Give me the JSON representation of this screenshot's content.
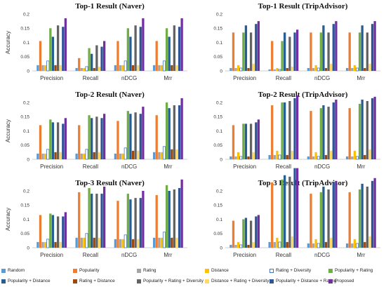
{
  "chart_data": [
    {
      "type": "bar",
      "title": "Top-1 Result (Naver)",
      "ylabel": "Accuracy",
      "ylim": [
        0,
        0.2
      ],
      "yticks": [
        "0",
        "0.05",
        "0.1",
        "0.15",
        "0.2"
      ],
      "categories": [
        "Precision",
        "Recall",
        "nDCG",
        "Mrr"
      ],
      "series_values": [
        [
          0.02,
          0.105,
          0.02,
          0.02,
          0.035,
          0.15,
          0.12,
          0.02,
          0.16,
          0.02,
          0.155,
          0.185
        ],
        [
          0.01,
          0.045,
          0.01,
          0.01,
          0.015,
          0.08,
          0.06,
          0.01,
          0.09,
          0.015,
          0.085,
          0.105
        ],
        [
          0.02,
          0.105,
          0.02,
          0.02,
          0.035,
          0.15,
          0.12,
          0.02,
          0.16,
          0.02,
          0.155,
          0.185
        ],
        [
          0.02,
          0.105,
          0.02,
          0.02,
          0.035,
          0.15,
          0.12,
          0.02,
          0.16,
          0.02,
          0.155,
          0.185
        ]
      ]
    },
    {
      "type": "bar",
      "title": "Top-1 Result (TripAdvisor)",
      "ylabel": "",
      "ylim": [
        0,
        0.2
      ],
      "yticks": [
        "0",
        "0.05",
        "0.1",
        "0.15",
        "0.2"
      ],
      "categories": [
        "Precision",
        "Recall",
        "nDCG",
        "Mrr"
      ],
      "series_values": [
        [
          0.01,
          0.135,
          0.01,
          0.02,
          0.01,
          0.135,
          0.16,
          0.01,
          0.135,
          0.025,
          0.165,
          0.175
        ],
        [
          0.005,
          0.105,
          0.005,
          0.01,
          0.005,
          0.105,
          0.135,
          0.01,
          0.12,
          0.015,
          0.135,
          0.145
        ],
        [
          0.01,
          0.135,
          0.01,
          0.02,
          0.01,
          0.135,
          0.16,
          0.01,
          0.135,
          0.025,
          0.165,
          0.175
        ],
        [
          0.01,
          0.135,
          0.01,
          0.02,
          0.01,
          0.135,
          0.16,
          0.01,
          0.135,
          0.025,
          0.165,
          0.175
        ]
      ]
    },
    {
      "type": "bar",
      "title": "Top-2 Result (Naver)",
      "ylabel": "Accuracy",
      "ylim": [
        0,
        0.2
      ],
      "yticks": [
        "0",
        "0.05",
        "0.1",
        "0.15",
        "0.2"
      ],
      "categories": [
        "Precision",
        "Recall",
        "nDCG",
        "Mrr"
      ],
      "series_values": [
        [
          0.02,
          0.12,
          0.02,
          0.02,
          0.035,
          0.14,
          0.13,
          0.025,
          0.13,
          0.025,
          0.125,
          0.145
        ],
        [
          0.02,
          0.12,
          0.02,
          0.02,
          0.035,
          0.155,
          0.145,
          0.025,
          0.15,
          0.025,
          0.145,
          0.16
        ],
        [
          0.02,
          0.135,
          0.02,
          0.02,
          0.04,
          0.17,
          0.16,
          0.03,
          0.165,
          0.03,
          0.16,
          0.185
        ],
        [
          0.025,
          0.155,
          0.025,
          0.025,
          0.045,
          0.2,
          0.18,
          0.035,
          0.19,
          0.035,
          0.19,
          0.215
        ]
      ]
    },
    {
      "type": "bar",
      "title": "Top-2 Result (TripAdvisor)",
      "ylabel": "",
      "ylim": [
        0,
        0.2
      ],
      "yticks": [
        "0",
        "0.05",
        "0.1",
        "0.15",
        "0.2"
      ],
      "categories": [
        "Precision",
        "Recall",
        "nDCG",
        "Mrr"
      ],
      "series_values": [
        [
          0.01,
          0.12,
          0.01,
          0.025,
          0.01,
          0.125,
          0.125,
          0.01,
          0.125,
          0.025,
          0.13,
          0.14
        ],
        [
          0.015,
          0.19,
          0.015,
          0.03,
          0.015,
          0.2,
          0.2,
          0.015,
          0.205,
          0.03,
          0.215,
          0.225
        ],
        [
          0.01,
          0.17,
          0.01,
          0.025,
          0.01,
          0.18,
          0.19,
          0.015,
          0.185,
          0.03,
          0.2,
          0.21
        ],
        [
          0.01,
          0.18,
          0.01,
          0.03,
          0.01,
          0.195,
          0.21,
          0.015,
          0.205,
          0.035,
          0.215,
          0.22
        ]
      ]
    },
    {
      "type": "bar",
      "title": "Top-3 Result (Naver)",
      "ylabel": "Accuracy",
      "ylim": [
        0,
        0.2
      ],
      "yticks": [
        "0",
        "0.05",
        "0.1",
        "0.15",
        "0.2"
      ],
      "categories": [
        "Precision",
        "Recall",
        "nDCG",
        "Mrr"
      ],
      "series_values": [
        [
          0.02,
          0.115,
          0.02,
          0.02,
          0.03,
          0.12,
          0.115,
          0.02,
          0.11,
          0.02,
          0.11,
          0.125
        ],
        [
          0.035,
          0.195,
          0.035,
          0.035,
          0.05,
          0.21,
          0.19,
          0.035,
          0.19,
          0.035,
          0.19,
          0.215
        ],
        [
          0.03,
          0.165,
          0.03,
          0.03,
          0.045,
          0.19,
          0.17,
          0.03,
          0.175,
          0.03,
          0.175,
          0.2
        ],
        [
          0.035,
          0.185,
          0.035,
          0.035,
          0.055,
          0.22,
          0.2,
          0.035,
          0.205,
          0.035,
          0.21,
          0.24
        ]
      ]
    },
    {
      "type": "bar",
      "title": "Top-3 Result (TripAdvisor)",
      "ylabel": "",
      "ylim": [
        0,
        0.2
      ],
      "yticks": [
        "0",
        "0.05",
        "0.1",
        "0.15",
        "0.2"
      ],
      "categories": [
        "Precision",
        "Recall",
        "nDCG",
        "Mrr"
      ],
      "series_values": [
        [
          0.01,
          0.095,
          0.01,
          0.02,
          0.01,
          0.1,
          0.105,
          0.01,
          0.095,
          0.02,
          0.11,
          0.115
        ],
        [
          0.02,
          0.23,
          0.02,
          0.035,
          0.02,
          0.24,
          0.255,
          0.02,
          0.25,
          0.04,
          0.28,
          0.28
        ],
        [
          0.015,
          0.19,
          0.015,
          0.03,
          0.015,
          0.195,
          0.215,
          0.02,
          0.205,
          0.035,
          0.23,
          0.235
        ],
        [
          0.015,
          0.195,
          0.015,
          0.03,
          0.015,
          0.205,
          0.225,
          0.02,
          0.215,
          0.04,
          0.235,
          0.245
        ]
      ]
    }
  ],
  "legend": [
    {
      "name": "Random",
      "color": "#5b9bd5",
      "hollow": false
    },
    {
      "name": "Popularity",
      "color": "#ed7d31",
      "hollow": false
    },
    {
      "name": "Rating",
      "color": "#a5a5a5",
      "hollow": false
    },
    {
      "name": "Distance",
      "color": "#ffc000",
      "hollow": false
    },
    {
      "name": "Rating + Diversity",
      "color": "#4472c4",
      "hollow": true
    },
    {
      "name": "Popularity + Rating",
      "color": "#70ad47",
      "hollow": false
    },
    {
      "name": "Popularity + Distance",
      "color": "#255e91",
      "hollow": false
    },
    {
      "name": "Rating + Distance",
      "color": "#9e480e",
      "hollow": false
    },
    {
      "name": "Popularity + Rating + Diversity",
      "color": "#636363",
      "hollow": false
    },
    {
      "name": "Distance + Rating + Diversity",
      "color": "#ffd966",
      "hollow": false
    },
    {
      "name": "Popularity + Distance + Rating",
      "color": "#2f5597",
      "hollow": false
    },
    {
      "name": "Proposed",
      "color": "#7030a0",
      "hollow": false
    }
  ]
}
